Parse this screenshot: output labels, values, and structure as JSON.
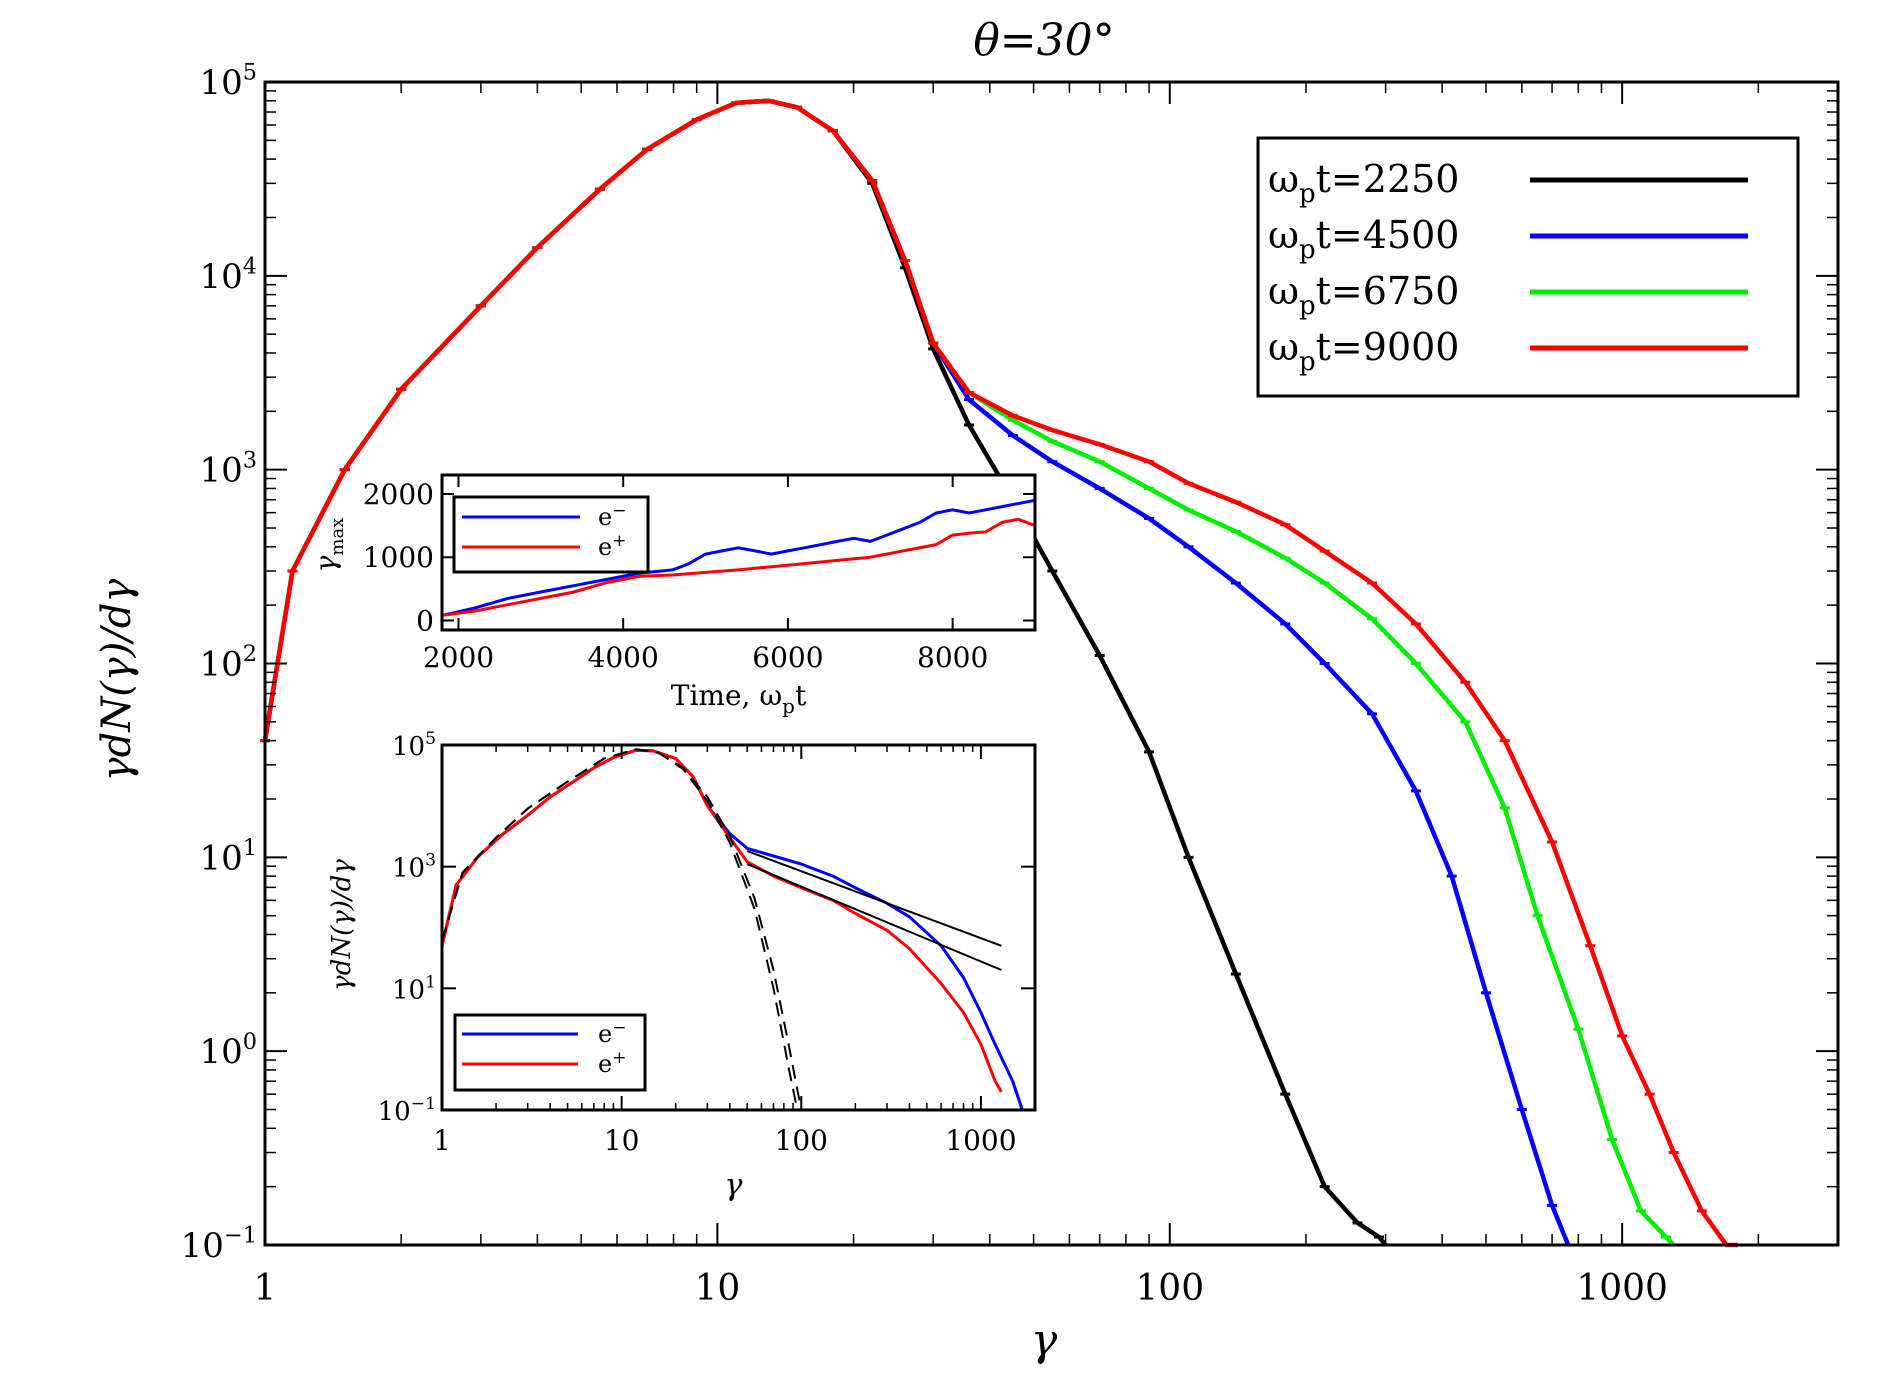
{
  "chart_data": [
    {
      "id": "main",
      "type": "line",
      "title": "θ=30°",
      "xlabel": "γ",
      "ylabel": "γdN(γ)/dγ",
      "xscale": "log",
      "yscale": "log",
      "xlim": [
        1,
        3000
      ],
      "ylim": [
        0.1,
        100000
      ],
      "x_ticks": [
        1,
        10,
        100,
        1000
      ],
      "x_tick_labels": [
        "1",
        "10",
        "100",
        "1000"
      ],
      "y_ticks": [
        0.1,
        1,
        10,
        100,
        1000,
        10000,
        100000
      ],
      "y_tick_base": [
        "10",
        "10",
        "10",
        "10",
        "10",
        "10",
        "10"
      ],
      "y_tick_exp": [
        "−1",
        "0",
        "1",
        "2",
        "3",
        "4",
        "5"
      ],
      "legend_position": "top-right",
      "series": [
        {
          "name": "ωpt=2250",
          "label_main": "ω",
          "label_sub": "p",
          "label_tail": "t=2250",
          "color": "#000000",
          "x": [
            1,
            1.15,
            1.5,
            2,
            3,
            4,
            5.5,
            7,
            9,
            11,
            13,
            15,
            18,
            22,
            26,
            30,
            36,
            45,
            55,
            70,
            90,
            110,
            140,
            180,
            220,
            260,
            290,
            300
          ],
          "y": [
            40,
            300,
            1000,
            2600,
            7000,
            14000,
            28000,
            45000,
            64000,
            78000,
            80000,
            74000,
            56000,
            30000,
            11000,
            4200,
            1700,
            700,
            300,
            110,
            35,
            10,
            2.5,
            0.6,
            0.2,
            0.13,
            0.11,
            0.1
          ]
        },
        {
          "name": "ωpt=4500",
          "label_main": "ω",
          "label_sub": "p",
          "label_tail": "t=4500",
          "color": "#0000ff",
          "x": [
            1,
            1.15,
            1.5,
            2,
            3,
            4,
            5.5,
            7,
            9,
            11,
            13,
            15,
            18,
            22,
            26,
            30,
            36,
            45,
            55,
            70,
            90,
            110,
            140,
            180,
            220,
            280,
            350,
            420,
            500,
            600,
            700,
            760
          ],
          "y": [
            40,
            300,
            1000,
            2600,
            7000,
            14000,
            28000,
            45000,
            64000,
            78000,
            80000,
            74000,
            56000,
            31000,
            12000,
            4500,
            2300,
            1500,
            1100,
            800,
            560,
            400,
            260,
            160,
            100,
            55,
            22,
            8,
            2,
            0.5,
            0.16,
            0.1
          ]
        },
        {
          "name": "ωpt=6750",
          "label_main": "ω",
          "label_sub": "p",
          "label_tail": "t=6750",
          "color": "#00ee00",
          "x": [
            1,
            1.15,
            1.5,
            2,
            3,
            4,
            5.5,
            7,
            9,
            11,
            13,
            15,
            18,
            22,
            26,
            30,
            36,
            45,
            55,
            70,
            90,
            110,
            140,
            180,
            220,
            280,
            350,
            450,
            550,
            650,
            800,
            950,
            1100,
            1250,
            1300
          ],
          "y": [
            40,
            300,
            1000,
            2600,
            7000,
            14000,
            28000,
            45000,
            64000,
            78000,
            80000,
            74000,
            56000,
            31000,
            12000,
            4500,
            2500,
            1800,
            1400,
            1100,
            800,
            620,
            480,
            350,
            260,
            170,
            100,
            50,
            18,
            5,
            1.3,
            0.35,
            0.15,
            0.11,
            0.1
          ]
        },
        {
          "name": "ωpt=9000",
          "label_main": "ω",
          "label_sub": "p",
          "label_tail": "t=9000",
          "color": "#ff0000",
          "x": [
            1,
            1.15,
            1.5,
            2,
            3,
            4,
            5.5,
            7,
            9,
            11,
            13,
            15,
            18,
            22,
            26,
            30,
            36,
            45,
            55,
            70,
            90,
            110,
            140,
            180,
            220,
            280,
            350,
            450,
            550,
            700,
            850,
            1000,
            1150,
            1300,
            1500,
            1700,
            1800
          ],
          "y": [
            40,
            300,
            1000,
            2600,
            7000,
            14000,
            28000,
            45000,
            64000,
            78000,
            80000,
            74000,
            56000,
            31000,
            12000,
            4500,
            2500,
            1900,
            1600,
            1350,
            1100,
            850,
            680,
            520,
            380,
            260,
            160,
            80,
            40,
            12,
            3.5,
            1.2,
            0.6,
            0.3,
            0.15,
            0.1,
            0.1
          ]
        }
      ]
    },
    {
      "id": "inset-top",
      "type": "line",
      "xlabel_main": "Time, ω",
      "xlabel_sub": "p",
      "xlabel_tail": "t",
      "ylabel_main": "γ",
      "ylabel_sub": "max",
      "xlim": [
        1800,
        9000
      ],
      "ylim": [
        -150,
        2300
      ],
      "x_ticks": [
        2000,
        4000,
        6000,
        8000
      ],
      "x_tick_labels": [
        "2000",
        "4000",
        "6000",
        "8000"
      ],
      "y_ticks": [
        0,
        1000,
        2000
      ],
      "y_tick_labels": [
        "0",
        "1000",
        "2000"
      ],
      "legend_position": "top-left",
      "series": [
        {
          "name": "e−",
          "label_main": "e",
          "label_sup": "−",
          "color": "#0000ff",
          "x": [
            1800,
            2200,
            2600,
            3000,
            3400,
            3800,
            4200,
            4600,
            4800,
            5000,
            5200,
            5400,
            5600,
            5800,
            6000,
            6200,
            6400,
            6600,
            6800,
            7000,
            7200,
            7400,
            7600,
            7800,
            8000,
            8200,
            8400,
            8600,
            8800,
            9000
          ],
          "y": [
            80,
            200,
            350,
            450,
            550,
            650,
            750,
            800,
            900,
            1050,
            1100,
            1150,
            1100,
            1050,
            1100,
            1150,
            1200,
            1250,
            1300,
            1250,
            1350,
            1450,
            1550,
            1700,
            1750,
            1700,
            1750,
            1800,
            1850,
            1900
          ]
        },
        {
          "name": "e+",
          "label_main": "e",
          "label_sup": "+",
          "color": "#ff0000",
          "x": [
            1800,
            2200,
            2600,
            3000,
            3400,
            3800,
            4200,
            4600,
            5000,
            5400,
            5800,
            6200,
            6600,
            7000,
            7400,
            7800,
            8000,
            8200,
            8400,
            8600,
            8800,
            9000
          ],
          "y": [
            80,
            150,
            250,
            350,
            450,
            600,
            700,
            720,
            760,
            800,
            850,
            900,
            950,
            1000,
            1100,
            1200,
            1350,
            1380,
            1400,
            1550,
            1600,
            1500
          ]
        }
      ]
    },
    {
      "id": "inset-bottom",
      "type": "line",
      "xlabel": "γ",
      "ylabel": "γdN(γ)/dγ",
      "xscale": "log",
      "yscale": "log",
      "xlim": [
        1,
        2000
      ],
      "ylim": [
        0.1,
        100000
      ],
      "x_ticks": [
        1,
        10,
        100,
        1000
      ],
      "x_tick_labels": [
        "1",
        "10",
        "100",
        "1000"
      ],
      "y_ticks": [
        0.1,
        10,
        1000,
        100000
      ],
      "y_tick_base": [
        "10",
        "10",
        "10",
        "10"
      ],
      "y_tick_exp": [
        "−1",
        "1",
        "3",
        "5"
      ],
      "legend_position": "bottom-left",
      "series": [
        {
          "name": "e−",
          "label_main": "e",
          "label_sup": "−",
          "color": "#0000ff",
          "x": [
            1,
            1.2,
            1.6,
            2.2,
            3,
            4,
            5.5,
            7,
            9,
            12,
            15,
            20,
            25,
            30,
            40,
            50,
            70,
            100,
            150,
            200,
            300,
            400,
            600,
            800,
            1000,
            1200,
            1500,
            1700
          ],
          "y": [
            50,
            500,
            1500,
            3500,
            7000,
            14000,
            26000,
            42000,
            62000,
            82000,
            80000,
            60000,
            30000,
            10000,
            3500,
            2000,
            1500,
            1100,
            700,
            450,
            250,
            150,
            50,
            15,
            4,
            1.2,
            0.3,
            0.1
          ]
        },
        {
          "name": "e+",
          "label_main": "e",
          "label_sup": "+",
          "color": "#ff0000",
          "x": [
            1,
            1.2,
            1.6,
            2.2,
            3,
            4,
            5.5,
            7,
            9,
            12,
            15,
            20,
            25,
            30,
            40,
            50,
            70,
            100,
            150,
            200,
            300,
            400,
            600,
            800,
            1000,
            1200,
            1300
          ],
          "y": [
            50,
            500,
            1500,
            3500,
            7000,
            14000,
            26000,
            42000,
            62000,
            82000,
            80000,
            60000,
            30000,
            10000,
            3000,
            1200,
            700,
            450,
            280,
            170,
            90,
            45,
            12,
            4,
            1.2,
            0.3,
            0.2
          ]
        },
        {
          "name": "maxwellian fit 1",
          "color": "#000000",
          "dash": true,
          "x": [
            1,
            1.3,
            2,
            3,
            5,
            8,
            12,
            16,
            22,
            30,
            40,
            55,
            70,
            85,
            95
          ],
          "y": [
            60,
            800,
            3000,
            9000,
            25000,
            60000,
            85000,
            75000,
            40000,
            12000,
            2500,
            200,
            10,
            0.5,
            0.1
          ]
        },
        {
          "name": "maxwellian fit 2",
          "color": "#000000",
          "dash": true,
          "x": [
            1,
            1.3,
            2,
            3,
            5,
            8,
            12,
            16,
            22,
            30,
            40,
            55,
            70,
            85,
            100
          ],
          "y": [
            60,
            800,
            3000,
            9000,
            25000,
            60000,
            85000,
            75000,
            42000,
            14000,
            3200,
            300,
            20,
            1.2,
            0.1
          ]
        },
        {
          "name": "power-law fit 1",
          "color": "#000000",
          "x": [
            50,
            1300
          ],
          "y": [
            1800,
            50
          ]
        },
        {
          "name": "power-law fit 2",
          "color": "#000000",
          "x": [
            50,
            1300
          ],
          "y": [
            1100,
            20
          ]
        }
      ]
    }
  ]
}
